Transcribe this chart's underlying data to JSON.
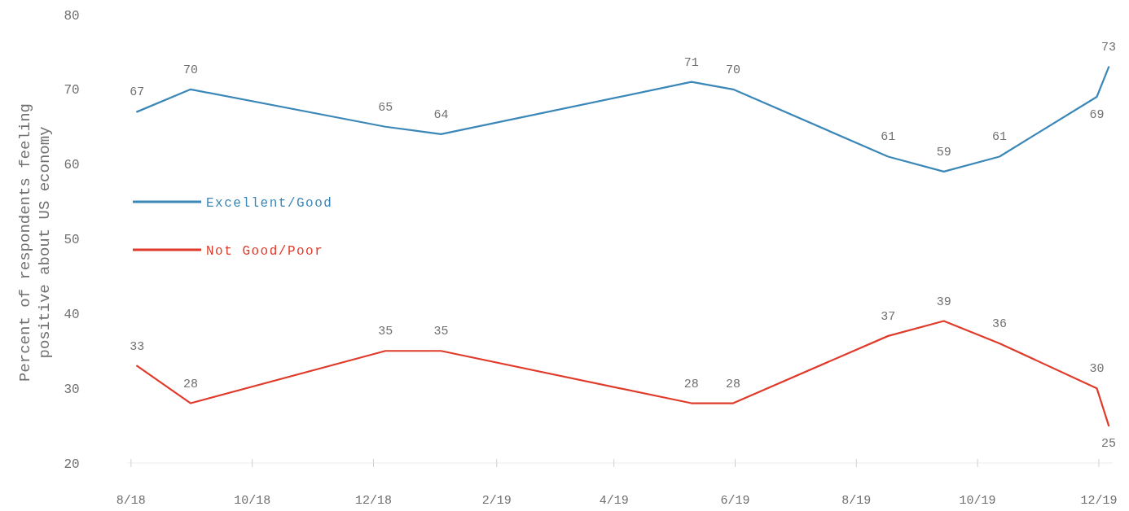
{
  "chart_data": {
    "type": "line",
    "ylabel": "Percent of respondents feeling positive about US economy",
    "x": [
      "2018-08-04",
      "2018-08-31",
      "2018-12-07",
      "2019-01-04",
      "2019-05-10",
      "2019-05-31",
      "2019-08-17",
      "2019-09-14",
      "2019-10-12",
      "2019-11-30",
      "2019-12-06"
    ],
    "series": [
      {
        "name": "Excellent/Good",
        "color": "#3a87b8",
        "values": [
          67,
          70,
          65,
          64,
          71,
          70,
          61,
          59,
          61,
          69,
          73
        ]
      },
      {
        "name": "Not Good/Poor",
        "color": "#e03a2a",
        "values": [
          33,
          28,
          35,
          35,
          28,
          28,
          37,
          39,
          36,
          30,
          25
        ]
      }
    ],
    "xlim": [
      "2018-07-30",
      "2019-12-08"
    ],
    "xticks": [
      {
        "value": "2018-08-01",
        "label": "8/18"
      },
      {
        "value": "2018-10-01",
        "label": "10/18"
      },
      {
        "value": "2018-12-01",
        "label": "12/18"
      },
      {
        "value": "2019-02-01",
        "label": "2/19"
      },
      {
        "value": "2019-04-01",
        "label": "4/19"
      },
      {
        "value": "2019-06-01",
        "label": "6/19"
      },
      {
        "value": "2019-08-01",
        "label": "8/19"
      },
      {
        "value": "2019-10-01",
        "label": "10/19"
      },
      {
        "value": "2019-12-01",
        "label": "12/19"
      }
    ],
    "ylim": [
      20,
      80
    ],
    "yticks": [
      20,
      30,
      40,
      50,
      60,
      70,
      80
    ],
    "grid": false,
    "legend": "left",
    "data_labels": true,
    "marker": "none",
    "line_style": "solid"
  }
}
